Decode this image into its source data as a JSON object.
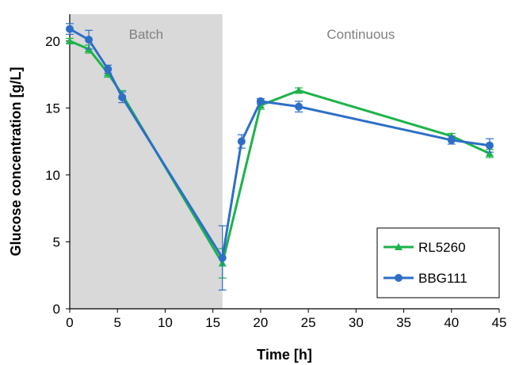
{
  "chart_data": {
    "type": "line",
    "xlabel": "Time [h]",
    "ylabel": "Glucose concentration [g/L]",
    "xlim": [
      0,
      45
    ],
    "ylim": [
      0,
      22
    ],
    "xticks": [
      0,
      5,
      10,
      15,
      20,
      25,
      30,
      35,
      40,
      45
    ],
    "yticks": [
      0,
      5,
      10,
      15,
      20
    ],
    "grid": false,
    "legend_position": "bottom-right",
    "regions": [
      {
        "label": "Batch",
        "x_start": 0,
        "x_end": 16,
        "color": "#d9d9d9"
      },
      {
        "label": "Continuous",
        "x_start": 16,
        "x_end": 45,
        "color": "#ffffff"
      }
    ],
    "series": [
      {
        "name": "RL5260",
        "color": "#1db34a",
        "marker": "triangle",
        "x": [
          0,
          2,
          4,
          5.5,
          16,
          20,
          24,
          40,
          44
        ],
        "y": [
          20.0,
          19.4,
          17.6,
          16.0,
          3.4,
          15.2,
          16.3,
          12.9,
          11.6
        ],
        "err": [
          0.2,
          0.3,
          0.3,
          0.3,
          1.1,
          0.3,
          0.2,
          0.2,
          0.3
        ]
      },
      {
        "name": "BBG111",
        "color": "#2d6fc7",
        "marker": "circle",
        "x": [
          0,
          2,
          4,
          5.5,
          16,
          18,
          20,
          24,
          40,
          44
        ],
        "y": [
          20.9,
          20.1,
          17.9,
          15.8,
          3.8,
          12.5,
          15.5,
          15.1,
          12.6,
          12.2
        ],
        "err": [
          0.4,
          0.7,
          0.3,
          0.4,
          2.4,
          0.5,
          0.2,
          0.4,
          0.3,
          0.5
        ]
      }
    ]
  }
}
